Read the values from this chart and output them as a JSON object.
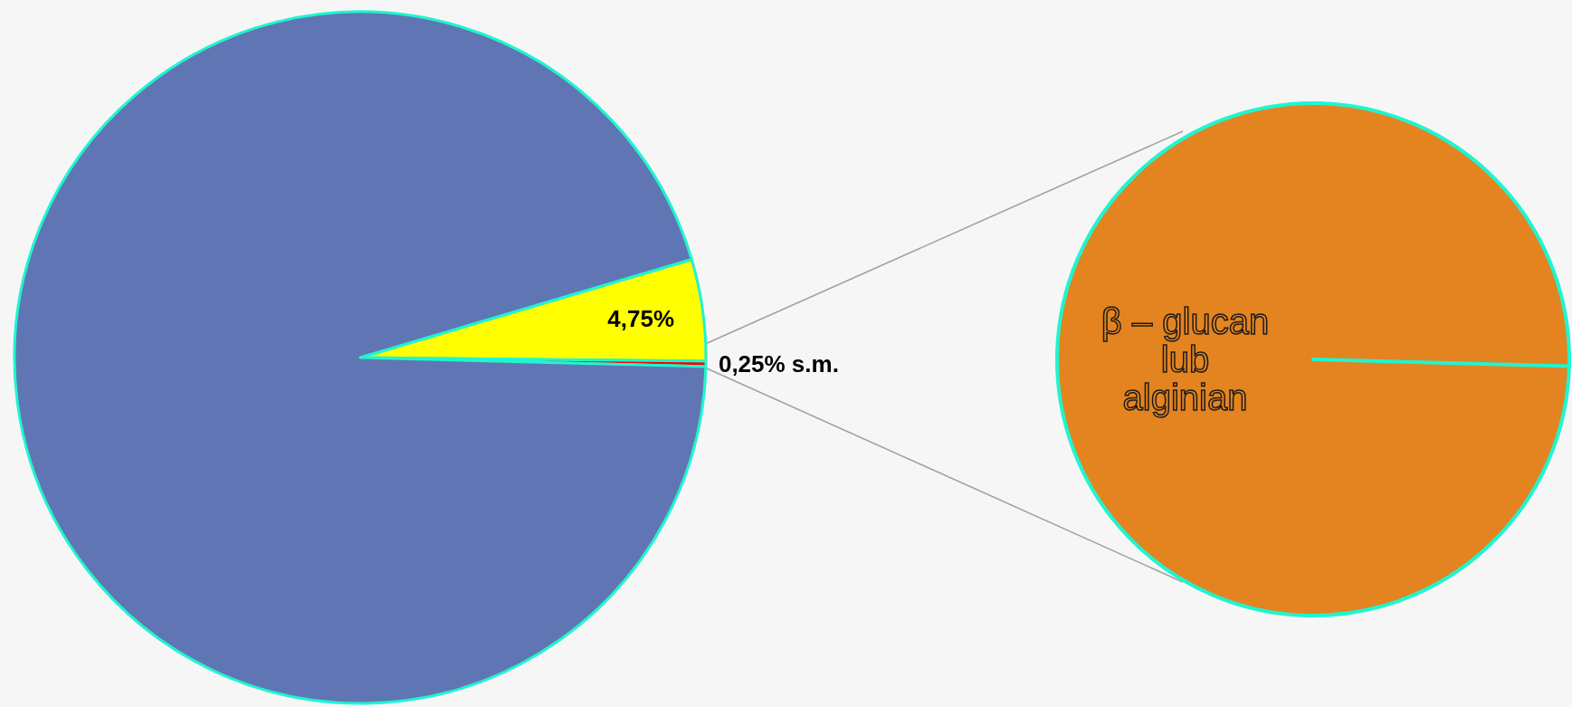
{
  "chart_data": [
    {
      "type": "pie",
      "categories": [
        null,
        null,
        null
      ],
      "values": [
        4.75,
        0.25,
        95
      ],
      "colors": [
        "#ffff00",
        "#ff0000",
        "#6076b4"
      ],
      "value_labels": [
        "4,75%",
        "0,25% s.m.",
        null
      ]
    },
    {
      "type": "pie",
      "categories": [
        "β – glucan lub alginian"
      ],
      "values": [
        100
      ],
      "colors": [
        "#e38421"
      ]
    }
  ]
}
